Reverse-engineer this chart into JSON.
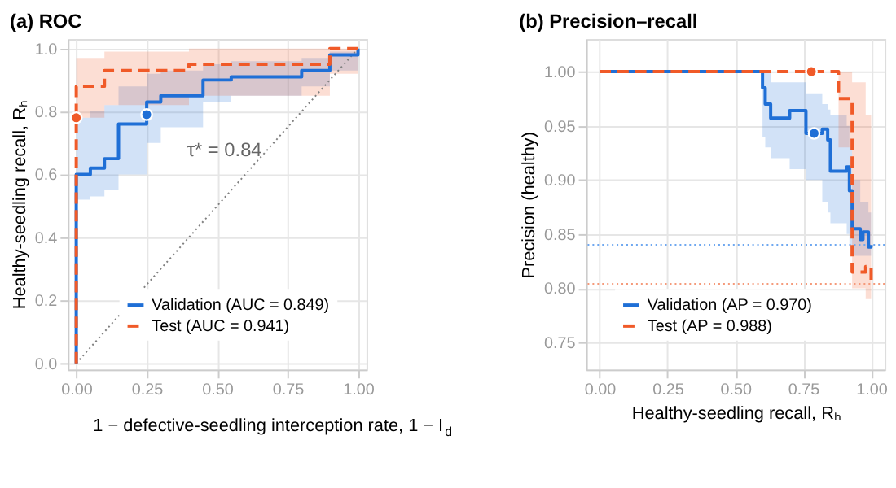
{
  "chart_data": [
    {
      "type": "line",
      "title": "(a) ROC",
      "xlabel": "1 − defective-seedling interception rate, 1 − I$_{d}$",
      "ylabel": "Healthy-seedling recall, Rₕ",
      "xlim": [
        -0.03,
        1.03
      ],
      "ylim": [
        -0.02,
        1.03
      ],
      "xticks": [
        {
          "value": 0,
          "label": "0.00"
        },
        {
          "value": 0.25,
          "label": "0.25"
        },
        {
          "value": 0.5,
          "label": "0.50"
        },
        {
          "value": 0.75,
          "label": "0.75"
        },
        {
          "value": 1,
          "label": "1.00"
        }
      ],
      "yticks": [
        {
          "value": 0,
          "label": "0.0"
        },
        {
          "value": 0.2,
          "label": "0.2"
        },
        {
          "value": 0.4,
          "label": "0.4"
        },
        {
          "value": 0.6,
          "label": "0.6"
        },
        {
          "value": 0.8,
          "label": "0.8"
        },
        {
          "value": 1,
          "label": "1.0"
        }
      ],
      "grid": true,
      "legend": "bottom right",
      "series": [
        {
          "type": "line",
          "color": "#808080",
          "line_style": "dotted",
          "x": [
            0,
            1
          ],
          "values": [
            0,
            1
          ]
        },
        {
          "name": "Validation (AUC = 0.849)",
          "type": "step",
          "color": "#1f6fd6",
          "line_style": "solid",
          "x": [
            0,
            0,
            0.05,
            0.1,
            0.15,
            0.25,
            0.3,
            0.45,
            0.55,
            0.8,
            0.9,
            1.0
          ],
          "values": [
            0,
            0.6,
            0.62,
            0.65,
            0.76,
            0.83,
            0.85,
            0.9,
            0.91,
            0.93,
            0.98,
            1.0
          ],
          "lower": [
            null,
            0.52,
            0.53,
            0.55,
            0.6,
            0.7,
            0.75,
            0.83,
            0.85,
            0.88,
            0.93,
            1.0
          ],
          "upper": [
            null,
            0.78,
            0.8,
            0.82,
            0.88,
            0.92,
            0.93,
            0.95,
            0.96,
            0.97,
            0.99,
            1.0
          ]
        },
        {
          "name": "Test (AUC = 0.941)",
          "type": "step",
          "color": "#f05a28",
          "line_style": "dashed",
          "x": [
            0,
            0,
            0.1,
            0.4,
            0.9,
            1.0
          ],
          "values": [
            0,
            0.88,
            0.93,
            0.95,
            1.0,
            1.0
          ],
          "lower": [
            null,
            0.78,
            0.82,
            0.85,
            0.92,
            0.92
          ],
          "upper": [
            null,
            0.97,
            0.99,
            1.0,
            1.0,
            1.0
          ]
        },
        {
          "type": "scatter",
          "color": "#1f6fd6",
          "marker": "circle",
          "x": [
            0.25
          ],
          "values": [
            0.79
          ]
        },
        {
          "type": "scatter",
          "color": "#f05a28",
          "marker": "circle",
          "x": [
            0
          ],
          "values": [
            0.78
          ]
        }
      ],
      "annotations": [
        {
          "text": "τ* = 0.84",
          "x": 0.25,
          "y": 0.79
        }
      ]
    },
    {
      "type": "line",
      "title": "(b) Precision–recall",
      "xlabel": "Healthy-seedling recall, Rₕ",
      "ylabel": "Precision (healthy)",
      "xlim": [
        -0.05,
        1.05
      ],
      "ylim": [
        0.725,
        1.03
      ],
      "xticks": [
        {
          "value": 0,
          "label": "0.00"
        },
        {
          "value": 0.25,
          "label": "0.25"
        },
        {
          "value": 0.5,
          "label": "0.50"
        },
        {
          "value": 0.75,
          "label": "0.75"
        },
        {
          "value": 1,
          "label": "1.00"
        }
      ],
      "yticks": [
        {
          "value": 0.75,
          "label": "0.75"
        },
        {
          "value": 0.8,
          "label": "0.80"
        },
        {
          "value": 0.85,
          "label": "0.85"
        },
        {
          "value": 0.9,
          "label": "0.90"
        },
        {
          "value": 0.95,
          "label": "0.95"
        },
        {
          "value": 1,
          "label": "1.00"
        }
      ],
      "grid": true,
      "legend": "bottom left",
      "series": [
        {
          "name": "Validation (AP = 0.970)",
          "type": "step",
          "color": "#1f6fd6",
          "line_style": "solid",
          "x": [
            0,
            0.6,
            0.61,
            0.63,
            0.7,
            0.76,
            0.82,
            0.84,
            0.85,
            0.91,
            0.92,
            0.93,
            0.96,
            0.97,
            0.99,
            1.0
          ],
          "values": [
            1.0,
            0.985,
            0.97,
            0.957,
            0.964,
            0.943,
            0.947,
            0.937,
            0.908,
            0.912,
            0.89,
            0.855,
            0.845,
            0.852,
            0.838,
            0.84
          ],
          "lower": [
            1.0,
            0.94,
            0.93,
            0.92,
            0.91,
            0.9,
            0.88,
            0.87,
            0.86,
            0.85,
            0.84,
            0.83,
            0.83,
            0.83,
            0.83,
            0.83
          ],
          "upper": [
            1.0,
            1.0,
            1.0,
            0.99,
            0.99,
            0.98,
            0.97,
            0.965,
            0.96,
            0.95,
            0.93,
            0.9,
            0.88,
            0.88,
            0.87,
            0.87
          ]
        },
        {
          "name": "Test (AP = 0.988)",
          "type": "step",
          "color": "#f05a28",
          "line_style": "dashed",
          "x": [
            0,
            0.88,
            0.93,
            0.98,
            1.0
          ],
          "values": [
            1.0,
            0.975,
            0.815,
            0.82,
            0.805
          ],
          "lower": [
            1.0,
            0.93,
            0.8,
            0.79,
            0.8
          ],
          "upper": [
            1.0,
            1.0,
            0.99,
            0.96,
            0.95
          ]
        },
        {
          "type": "scatter",
          "color": "#1f6fd6",
          "marker": "circle",
          "x": [
            0.79
          ],
          "values": [
            0.943
          ]
        },
        {
          "type": "scatter",
          "color": "#f05a28",
          "marker": "circle",
          "x": [
            0.78
          ],
          "values": [
            1.0
          ]
        }
      ],
      "ref_lines": [
        {
          "axis": "y",
          "value": 0.84,
          "color": "#6fa8f0",
          "line_style": "dotted"
        },
        {
          "axis": "y",
          "value": 0.804,
          "color": "#f59a7a",
          "line_style": "dotted"
        }
      ]
    }
  ]
}
